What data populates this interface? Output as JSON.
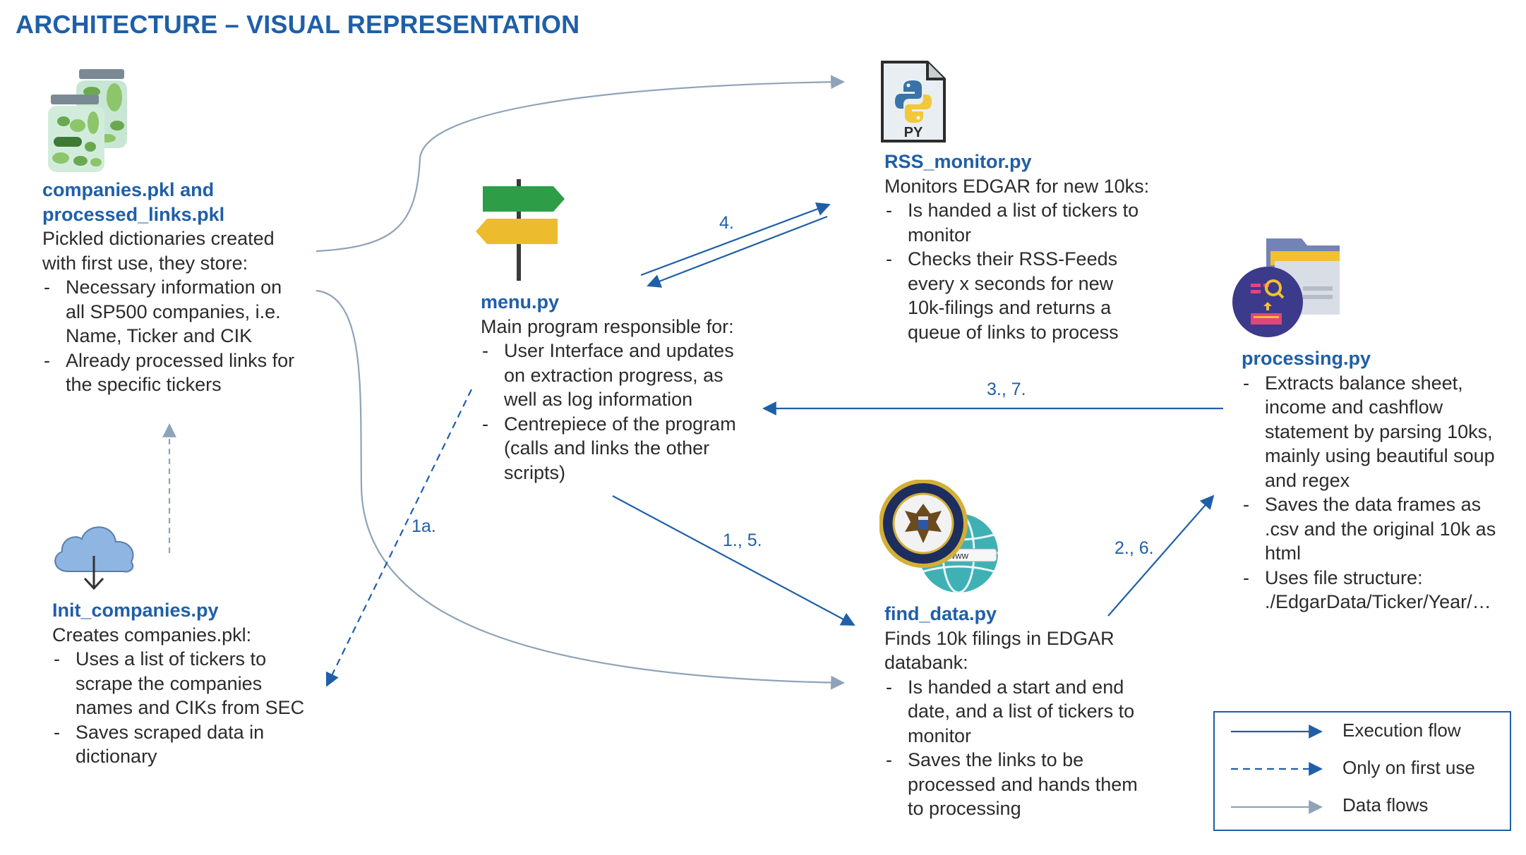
{
  "title": "ARCHITECTURE – VISUAL REPRESENTATION",
  "companies": {
    "heading": [
      "companies.pkl and",
      "processed_links.pkl"
    ],
    "lines": [
      "Pickled dictionaries created",
      "with first use, they store:"
    ],
    "bullets": [
      [
        "Necessary information on",
        "all SP500 companies, i.e.",
        "Name, Ticker and CIK"
      ],
      [
        "Already processed links for",
        "the specific tickers"
      ]
    ]
  },
  "init": {
    "heading": [
      "Init_companies.py"
    ],
    "lines": [
      "Creates companies.pkl:"
    ],
    "bullets": [
      [
        "Uses a list of tickers to",
        "scrape the companies",
        "names and CIKs from SEC"
      ],
      [
        "Saves scraped data in",
        "dictionary"
      ]
    ]
  },
  "menu": {
    "heading": [
      "menu.py"
    ],
    "lines": [
      "Main program responsible for:"
    ],
    "bullets": [
      [
        "User Interface and updates",
        "on extraction progress, as",
        "well as log information"
      ],
      [
        "Centrepiece of the program",
        "(calls and links the other",
        "scripts)"
      ]
    ]
  },
  "rss": {
    "heading": [
      "RSS_monitor.py"
    ],
    "lines": [
      "Monitors EDGAR for new 10ks:"
    ],
    "bullets": [
      [
        "Is handed a list of tickers to",
        "monitor"
      ],
      [
        "Checks their RSS-Feeds",
        "every x seconds for new",
        "10k-filings and returns a",
        "queue of links to process"
      ]
    ]
  },
  "processing": {
    "heading": [
      "processing.py"
    ],
    "lines": [],
    "bullets": [
      [
        "Extracts balance sheet,",
        "income and cashflow",
        "statement by parsing 10ks,",
        "mainly using beautiful soup",
        "and regex"
      ],
      [
        "Saves the data frames as",
        ".csv and the original 10k as",
        "html"
      ],
      [
        "Uses file structure:",
        "./EdgarData/Ticker/Year/…"
      ]
    ]
  },
  "find": {
    "heading": [
      "find_data.py"
    ],
    "lines": [
      "Finds 10k filings in EDGAR",
      "databank:"
    ],
    "bullets": [
      [
        "Is handed a start and end",
        "date, and a list of tickers to",
        "monitor"
      ],
      [
        "Saves the links to be",
        "processed and hands them",
        "to processing"
      ]
    ]
  },
  "flow_labels": {
    "four": "4.",
    "three_seven": "3., 7.",
    "one_five": "1., 5.",
    "two_six": "2., 6.",
    "one_a": "1a."
  },
  "icons": {
    "py_badge": "PY",
    "sec_url": "www"
  },
  "legend": {
    "execution": "Execution flow",
    "first_use": "Only on first use",
    "data": "Data flows"
  },
  "colors": {
    "accent": "#1f5fa8",
    "arrow_exec": "#1f5fa8",
    "arrow_data": "#8ea3b8"
  }
}
